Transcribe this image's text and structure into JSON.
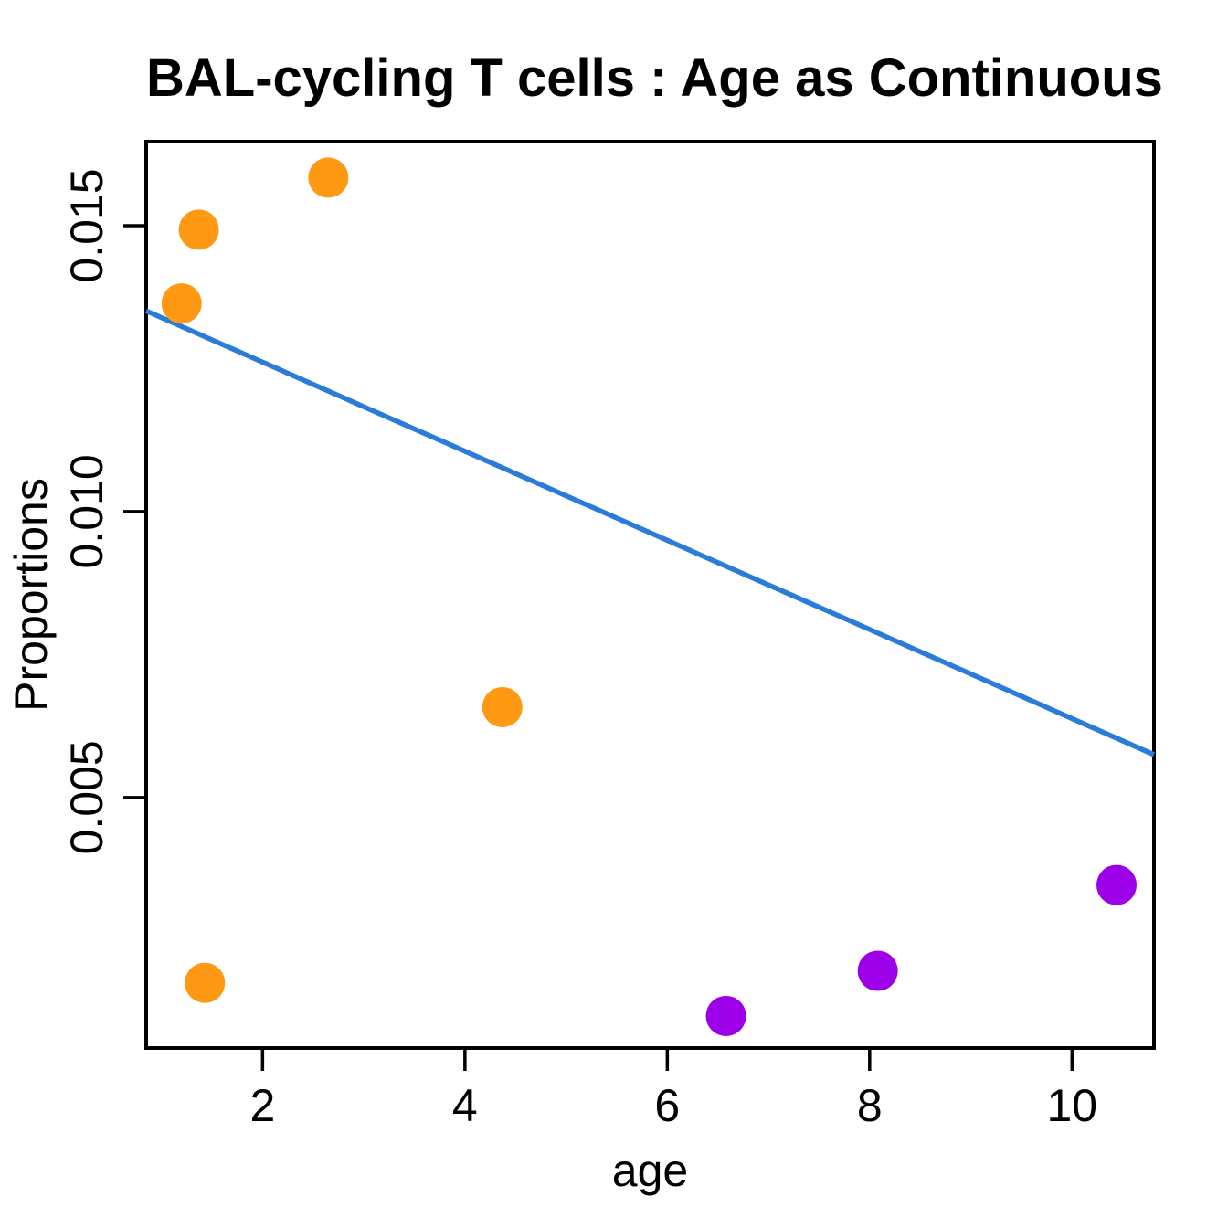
{
  "page": {
    "background": "#ffffff"
  },
  "chart_data": {
    "type": "scatter",
    "title": "BAL-cycling T cells : Age as Continuous",
    "xlabel": "age",
    "ylabel": "Proportions",
    "xlim": [
      0.85,
      10.81
    ],
    "ylim": [
      0.00062,
      0.01647
    ],
    "grid": false,
    "x_ticks": {
      "values": [
        2,
        4,
        6,
        8,
        10
      ],
      "labels": [
        "2",
        "4",
        "6",
        "8",
        "10"
      ]
    },
    "y_ticks": {
      "values": [
        0.005,
        0.01,
        0.015
      ],
      "labels": [
        "0.005",
        "0.010",
        "0.015"
      ]
    },
    "series": [
      {
        "name": "young-group-orange",
        "color": "#FF9812",
        "marker": "circle",
        "points": [
          [
            2.65,
            0.01584
          ],
          [
            1.37,
            0.01493
          ],
          [
            1.2,
            0.01364
          ],
          [
            4.37,
            0.00658
          ],
          [
            1.43,
            0.00176
          ]
        ]
      },
      {
        "name": "old-group-purple",
        "color": "#9C00E8",
        "marker": "circle",
        "points": [
          [
            6.58,
            0.00118
          ],
          [
            8.08,
            0.00197
          ],
          [
            10.44,
            0.00347
          ]
        ]
      }
    ],
    "trend_line": {
      "name": "regression-line",
      "color": "#2B7CD8",
      "x1": 0.85,
      "y1": 0.01351,
      "x2": 10.81,
      "y2": 0.00575
    },
    "axis_color": "#000000",
    "text_color": "#000000"
  }
}
